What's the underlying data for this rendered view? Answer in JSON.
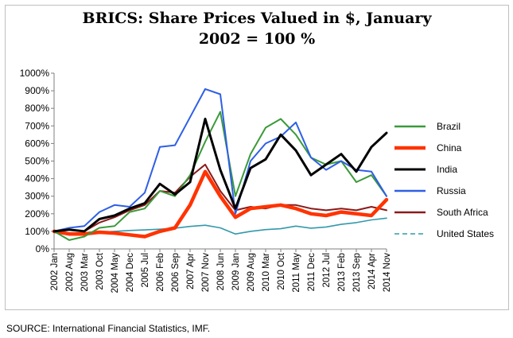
{
  "title_line1": "BRICS: Share Prices Valued in $, January",
  "title_line2": "2002 = 100 %",
  "source": "SOURCE: International Financial Statistics, IMF.",
  "chart_data": {
    "type": "line",
    "title": "BRICS: Share Prices Valued in $, January 2002 = 100 %",
    "xlabel": "",
    "ylabel": "",
    "ylim": [
      0,
      1000
    ],
    "yticks": [
      "0%",
      "100%",
      "200%",
      "300%",
      "400%",
      "500%",
      "600%",
      "700%",
      "800%",
      "900%",
      "1000%"
    ],
    "xticks": [
      "2002 Jan",
      "2002 Aug",
      "2003 Mar",
      "2003 Oct",
      "2004 May",
      "2004 Dec",
      "2005 Jul",
      "2006 Feb",
      "2006 Sep",
      "2007 Apr",
      "2007 Nov",
      "2008 Jun",
      "2009 Jan",
      "2009 Aug",
      "2010 Mar",
      "2010 Oct",
      "2011 May",
      "2011 Dec",
      "2012 Jul",
      "2013 Feb",
      "2013 Sep",
      "2014 Apr",
      "2014 Nov"
    ],
    "grid": false,
    "legend_position": "right",
    "series": [
      {
        "name": "Brazil",
        "color": "#3a9a3a",
        "points": [
          [
            "2002 Jan",
            100
          ],
          [
            "2002 Aug",
            50
          ],
          [
            "2003 Mar",
            70
          ],
          [
            "2003 Oct",
            120
          ],
          [
            "2004 May",
            130
          ],
          [
            "2004 Dec",
            210
          ],
          [
            "2005 Jul",
            230
          ],
          [
            "2006 Feb",
            330
          ],
          [
            "2006 Sep",
            300
          ],
          [
            "2007 Apr",
            420
          ],
          [
            "2007 Nov",
            610
          ],
          [
            "2008 Jun",
            780
          ],
          [
            "2009 Jan",
            300
          ],
          [
            "2009 Aug",
            540
          ],
          [
            "2010 Mar",
            690
          ],
          [
            "2010 Oct",
            740
          ],
          [
            "2011 May",
            650
          ],
          [
            "2011 Dec",
            520
          ],
          [
            "2012 Jul",
            480
          ],
          [
            "2013 Feb",
            500
          ],
          [
            "2013 Sep",
            380
          ],
          [
            "2014 Apr",
            420
          ],
          [
            "2014 Nov",
            300
          ]
        ]
      },
      {
        "name": "China",
        "color": "#ff3300",
        "points": [
          [
            "2002 Jan",
            100
          ],
          [
            "2002 Aug",
            85
          ],
          [
            "2003 Mar",
            85
          ],
          [
            "2003 Oct",
            95
          ],
          [
            "2004 May",
            90
          ],
          [
            "2004 Dec",
            80
          ],
          [
            "2005 Jul",
            70
          ],
          [
            "2006 Feb",
            100
          ],
          [
            "2006 Sep",
            120
          ],
          [
            "2007 Apr",
            250
          ],
          [
            "2007 Nov",
            440
          ],
          [
            "2008 Jun",
            300
          ],
          [
            "2009 Jan",
            180
          ],
          [
            "2009 Aug",
            230
          ],
          [
            "2010 Mar",
            240
          ],
          [
            "2010 Oct",
            250
          ],
          [
            "2011 May",
            230
          ],
          [
            "2011 Dec",
            200
          ],
          [
            "2012 Jul",
            190
          ],
          [
            "2013 Feb",
            210
          ],
          [
            "2013 Sep",
            200
          ],
          [
            "2014 Apr",
            190
          ],
          [
            "2014 Nov",
            280
          ]
        ]
      },
      {
        "name": "India",
        "color": "#000000",
        "points": [
          [
            "2002 Jan",
            100
          ],
          [
            "2002 Aug",
            110
          ],
          [
            "2003 Mar",
            100
          ],
          [
            "2003 Oct",
            170
          ],
          [
            "2004 May",
            190
          ],
          [
            "2004 Dec",
            230
          ],
          [
            "2005 Jul",
            260
          ],
          [
            "2006 Feb",
            370
          ],
          [
            "2006 Sep",
            310
          ],
          [
            "2007 Apr",
            380
          ],
          [
            "2007 Nov",
            740
          ],
          [
            "2008 Jun",
            450
          ],
          [
            "2009 Jan",
            230
          ],
          [
            "2009 Aug",
            460
          ],
          [
            "2010 Mar",
            510
          ],
          [
            "2010 Oct",
            650
          ],
          [
            "2011 May",
            560
          ],
          [
            "2011 Dec",
            420
          ],
          [
            "2012 Jul",
            480
          ],
          [
            "2013 Feb",
            540
          ],
          [
            "2013 Sep",
            440
          ],
          [
            "2014 Apr",
            580
          ],
          [
            "2014 Nov",
            660
          ]
        ]
      },
      {
        "name": "Russia",
        "color": "#2e5fe6",
        "points": [
          [
            "2002 Jan",
            100
          ],
          [
            "2002 Aug",
            120
          ],
          [
            "2003 Mar",
            130
          ],
          [
            "2003 Oct",
            210
          ],
          [
            "2004 May",
            250
          ],
          [
            "2004 Dec",
            240
          ],
          [
            "2005 Jul",
            320
          ],
          [
            "2006 Feb",
            580
          ],
          [
            "2006 Sep",
            590
          ],
          [
            "2007 Apr",
            750
          ],
          [
            "2007 Nov",
            910
          ],
          [
            "2008 Jun",
            880
          ],
          [
            "2009 Jan",
            200
          ],
          [
            "2009 Aug",
            500
          ],
          [
            "2010 Mar",
            600
          ],
          [
            "2010 Oct",
            640
          ],
          [
            "2011 May",
            720
          ],
          [
            "2011 Dec",
            520
          ],
          [
            "2012 Jul",
            450
          ],
          [
            "2013 Feb",
            500
          ],
          [
            "2013 Sep",
            450
          ],
          [
            "2014 Apr",
            440
          ],
          [
            "2014 Nov",
            300
          ]
        ]
      },
      {
        "name": "South Africa",
        "color": "#8b1a1a",
        "points": [
          [
            "2002 Jan",
            100
          ],
          [
            "2002 Aug",
            110
          ],
          [
            "2003 Mar",
            100
          ],
          [
            "2003 Oct",
            150
          ],
          [
            "2004 May",
            180
          ],
          [
            "2004 Dec",
            220
          ],
          [
            "2005 Jul",
            250
          ],
          [
            "2006 Feb",
            330
          ],
          [
            "2006 Sep",
            320
          ],
          [
            "2007 Apr",
            410
          ],
          [
            "2007 Nov",
            480
          ],
          [
            "2008 Jun",
            330
          ],
          [
            "2009 Jan",
            220
          ],
          [
            "2009 Aug",
            240
          ],
          [
            "2010 Mar",
            230
          ],
          [
            "2010 Oct",
            250
          ],
          [
            "2011 May",
            250
          ],
          [
            "2011 Dec",
            230
          ],
          [
            "2012 Jul",
            220
          ],
          [
            "2013 Feb",
            230
          ],
          [
            "2013 Sep",
            220
          ],
          [
            "2014 Apr",
            240
          ],
          [
            "2014 Nov",
            220
          ]
        ]
      },
      {
        "name": "United States",
        "color": "#3399aa",
        "dashed": true,
        "points": [
          [
            "2002 Jan",
            100
          ],
          [
            "2002 Aug",
            80
          ],
          [
            "2003 Mar",
            80
          ],
          [
            "2003 Oct",
            95
          ],
          [
            "2004 May",
            100
          ],
          [
            "2004 Dec",
            105
          ],
          [
            "2005 Jul",
            108
          ],
          [
            "2006 Feb",
            112
          ],
          [
            "2006 Sep",
            118
          ],
          [
            "2007 Apr",
            128
          ],
          [
            "2007 Nov",
            135
          ],
          [
            "2008 Jun",
            120
          ],
          [
            "2009 Jan",
            85
          ],
          [
            "2009 Aug",
            100
          ],
          [
            "2010 Mar",
            110
          ],
          [
            "2010 Oct",
            115
          ],
          [
            "2011 May",
            130
          ],
          [
            "2011 Dec",
            118
          ],
          [
            "2012 Jul",
            125
          ],
          [
            "2013 Feb",
            140
          ],
          [
            "2013 Sep",
            150
          ],
          [
            "2014 Apr",
            165
          ],
          [
            "2014 Nov",
            175
          ]
        ]
      }
    ]
  }
}
